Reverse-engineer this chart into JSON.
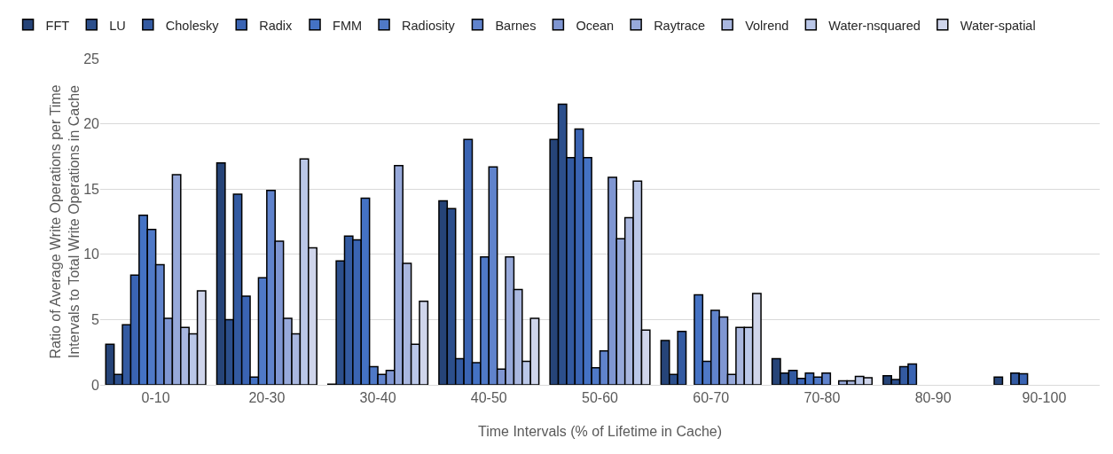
{
  "chart_data": {
    "type": "bar",
    "xlabel": "Time Intervals (% of Lifetime in Cache)",
    "ylabel": "Ratio of Average Write Operations per Time Intervals to Total Write Operations in Cache",
    "categories": [
      "0-10",
      "20-30",
      "30-40",
      "40-50",
      "50-60",
      "60-70",
      "70-80",
      "80-90",
      "90-100"
    ],
    "ylim": [
      0,
      25
    ],
    "yticks": [
      0,
      5,
      10,
      15,
      20,
      25
    ],
    "grid": "y",
    "legend": "top",
    "series": [
      {
        "name": "FFT",
        "color": "#264478",
        "values": [
          3.1,
          17.0,
          0.05,
          14.1,
          18.8,
          3.4,
          2.0,
          0.7,
          0.6
        ]
      },
      {
        "name": "LU",
        "color": "#2c4f8c",
        "values": [
          0.8,
          5.0,
          9.5,
          13.5,
          21.5,
          0.8,
          0.9,
          0.4,
          0
        ]
      },
      {
        "name": "Cholesky",
        "color": "#335aa1",
        "values": [
          4.6,
          14.6,
          11.4,
          2.0,
          17.4,
          4.1,
          1.1,
          1.4,
          0.9
        ]
      },
      {
        "name": "Radix",
        "color": "#3a64b3",
        "values": [
          8.4,
          6.8,
          11.1,
          18.8,
          19.6,
          0,
          0.5,
          1.6,
          0.85
        ]
      },
      {
        "name": "FMM",
        "color": "#4472c4",
        "values": [
          13.0,
          0.6,
          14.3,
          1.7,
          17.4,
          6.9,
          0.9,
          0,
          0
        ]
      },
      {
        "name": "Radiosity",
        "color": "#4f79c7",
        "values": [
          11.9,
          8.2,
          1.4,
          9.8,
          1.3,
          1.8,
          0.6,
          0,
          0
        ]
      },
      {
        "name": "Barnes",
        "color": "#6083cc",
        "values": [
          9.2,
          14.9,
          0.8,
          16.7,
          2.6,
          5.7,
          0.9,
          0,
          0
        ]
      },
      {
        "name": "Ocean",
        "color": "#7f96d2",
        "values": [
          5.1,
          11.0,
          1.1,
          1.2,
          15.9,
          5.2,
          0,
          0,
          0
        ]
      },
      {
        "name": "Raytrace",
        "color": "#97a9da",
        "values": [
          16.1,
          5.1,
          16.8,
          9.8,
          11.2,
          0.8,
          0.3,
          0,
          0
        ]
      },
      {
        "name": "Volrend",
        "color": "#a9b7df",
        "values": [
          4.4,
          3.9,
          9.3,
          7.3,
          12.8,
          4.4,
          0.3,
          0,
          0
        ]
      },
      {
        "name": "Water-nsquared",
        "color": "#bac7e8",
        "values": [
          3.9,
          17.3,
          3.1,
          1.8,
          15.6,
          4.4,
          0.65,
          0,
          0
        ]
      },
      {
        "name": "Water-spatial",
        "color": "#cfd5eb",
        "values": [
          7.2,
          10.5,
          6.4,
          5.1,
          4.2,
          7.0,
          0.55,
          0,
          0
        ]
      }
    ]
  }
}
